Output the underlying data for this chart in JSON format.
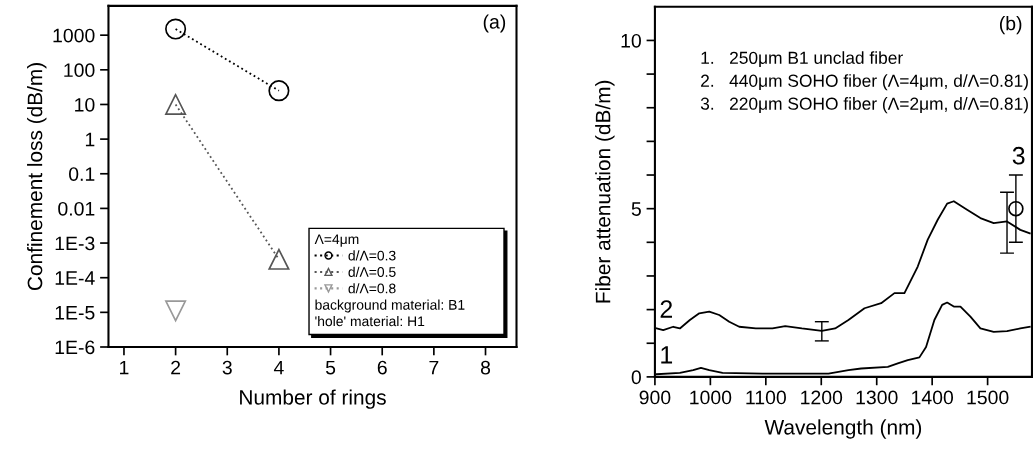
{
  "chart_data": [
    {
      "type": "line",
      "ylabel": "Confinement loss (dB/m)",
      "xlabel": "Number of rings",
      "legend_title": "Λ=4μm",
      "log": "y",
      "legend": "lower right",
      "line_style": "dotted",
      "marker": "circle",
      "grid": false,
      "xlim": [
        0.7,
        8.6
      ],
      "xticks": [
        1,
        2,
        3,
        4,
        5,
        6,
        7,
        8
      ],
      "ylim": [
        1e-06,
        7000
      ],
      "yticks": [
        {
          "value": 1e-06,
          "label": "1E-6"
        },
        {
          "value": 1e-05,
          "label": "1E-5"
        },
        {
          "value": 0.0001,
          "label": "1E-4"
        },
        {
          "value": 0.001,
          "label": "1E-3"
        },
        0.01,
        0.1,
        1,
        10,
        100,
        1000
      ],
      "annotations": [
        "(a)",
        "background material: B1",
        "'hole' material: H1"
      ],
      "series": [
        {
          "name": "d/Λ=0.3",
          "color": "#000000",
          "marker": "circle",
          "x": [
            2,
            4
          ],
          "values": [
            1500,
            25
          ]
        },
        {
          "name": "d/Λ=0.5",
          "color": "#555555",
          "marker": "triangle",
          "x": [
            2,
            4
          ],
          "values": [
            10,
            0.00034
          ]
        },
        {
          "name": "d/Λ=0.8",
          "color": "#999999",
          "marker": "triangle_down",
          "x": [
            2
          ],
          "values": [
            1.1e-05
          ]
        }
      ]
    },
    {
      "type": "line",
      "ylabel": "Fiber attenuation (dB/m)",
      "xlabel": "Wavelength (nm)",
      "legend": false,
      "grid": false,
      "marker": "none",
      "line_style": "solid",
      "xlim": [
        900,
        1580
      ],
      "xticks": [
        900,
        1000,
        1100,
        1200,
        1300,
        1400,
        1500
      ],
      "ylim": [
        0,
        11
      ],
      "yticks": [
        0,
        {
          "value": 1,
          "label": null
        },
        {
          "value": 2,
          "label": null
        },
        {
          "value": 3,
          "label": null
        },
        {
          "value": 4,
          "label": null
        },
        5,
        {
          "value": 6,
          "label": null
        },
        {
          "value": 7,
          "label": null
        },
        {
          "value": 8,
          "label": null
        },
        {
          "value": 9,
          "label": null
        },
        10
      ],
      "annotations": [
        "(b)",
        "1.   250μm B1 unclad fiber",
        "2.   440μm SOHO fiber (Λ=4μm, d/Λ=0.81)",
        "3.   220μm SOHO fiber (Λ=2μm, d/Λ=0.81)"
      ],
      "series": [
        {
          "name": "1",
          "color": "#000000",
          "x": [
            903,
            945,
            969,
            983,
            998,
            1022,
            1094,
            1213,
            1249,
            1272,
            1320,
            1338,
            1356,
            1377,
            1389,
            1404,
            1418,
            1427,
            1439,
            1451,
            1469,
            1487,
            1511,
            1535,
            1559,
            1576
          ],
          "values": [
            0.08,
            0.12,
            0.2,
            0.27,
            0.2,
            0.12,
            0.1,
            0.1,
            0.2,
            0.25,
            0.3,
            0.4,
            0.5,
            0.58,
            0.89,
            1.69,
            2.14,
            2.21,
            2.09,
            2.09,
            1.79,
            1.44,
            1.34,
            1.36,
            1.44,
            1.49
          ]
        },
        {
          "name": "2",
          "color": "#000000",
          "x": [
            903,
            915,
            933,
            945,
            963,
            980,
            998,
            1016,
            1034,
            1052,
            1082,
            1112,
            1135,
            1165,
            1201,
            1225,
            1249,
            1278,
            1308,
            1332,
            1350,
            1374,
            1392,
            1410,
            1427,
            1439,
            1463,
            1487,
            1511,
            1535,
            1559,
            1576
          ],
          "values": [
            1.44,
            1.39,
            1.49,
            1.44,
            1.69,
            1.89,
            1.94,
            1.84,
            1.64,
            1.49,
            1.44,
            1.44,
            1.51,
            1.44,
            1.37,
            1.44,
            1.69,
            2.04,
            2.19,
            2.49,
            2.49,
            3.28,
            4.08,
            4.67,
            5.15,
            5.22,
            4.97,
            4.72,
            4.57,
            4.62,
            4.37,
            4.27
          ],
          "errors": [
            null,
            null,
            null,
            null,
            null,
            null,
            null,
            null,
            null,
            null,
            null,
            null,
            null,
            null,
            [
              1.07,
              1.64
            ],
            null,
            null,
            null,
            null,
            null,
            null,
            null,
            null,
            null,
            null,
            null,
            null,
            null,
            null,
            [
              3.68,
              5.49
            ],
            null,
            null
          ]
        },
        {
          "name": "3",
          "color": "#000000",
          "type": "scatter",
          "marker": "circle",
          "x": [
            1551
          ],
          "values": [
            5.0
          ],
          "errors": [
            [
              4.0,
              6.0
            ]
          ]
        }
      ]
    }
  ]
}
